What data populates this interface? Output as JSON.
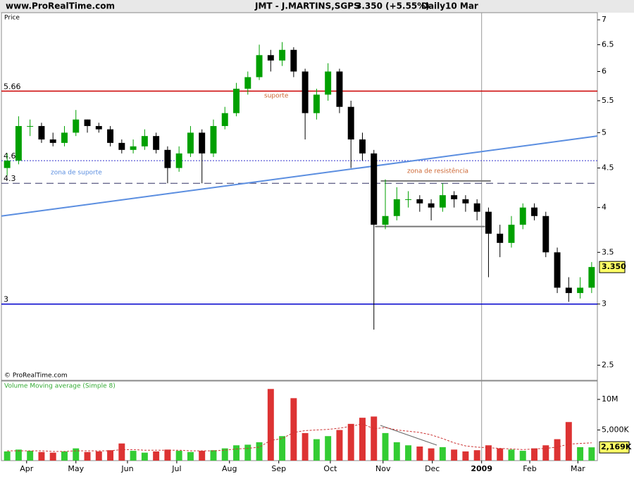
{
  "chart_data": {
    "type": "candlestick",
    "site": "www.ProRealTime.com",
    "title": "JMT - J.MARTINS,SGPS",
    "header_price": "3.350 (+5.55%)",
    "period": "Daily",
    "date": "10 Mar",
    "price_label": "Price",
    "copyright": "© ProRealTime.com",
    "volume_title": "Volume Moving average (Simple 8)",
    "log_scale": true,
    "xlim": [
      -0.5,
      51.5
    ],
    "xticks": [
      {
        "value": 1.7,
        "label": "Apr"
      },
      {
        "value": 6.0,
        "label": "May"
      },
      {
        "value": 10.5,
        "label": "Jun"
      },
      {
        "value": 14.8,
        "label": "Jul"
      },
      {
        "value": 19.4,
        "label": "Aug"
      },
      {
        "value": 23.7,
        "label": "Sep"
      },
      {
        "value": 28.2,
        "label": "Oct"
      },
      {
        "value": 32.8,
        "label": "Nov"
      },
      {
        "value": 37.1,
        "label": "Dec"
      },
      {
        "value": 41.4,
        "label": "2009"
      },
      {
        "value": 45.6,
        "label": "Feb"
      },
      {
        "value": 49.8,
        "label": "Mar"
      }
    ],
    "ylim": [
      2.39,
      7.15
    ],
    "yticks": [
      2.5,
      3,
      3.5,
      4,
      4.5,
      5,
      5.5,
      6,
      6.5,
      7
    ],
    "up_color": "#00a000",
    "down_color": "#000000",
    "open": [
      4.5,
      4.6,
      5.1,
      5.1,
      4.9,
      4.85,
      5.0,
      5.2,
      5.1,
      5.05,
      4.85,
      4.75,
      4.8,
      4.95,
      4.75,
      4.5,
      4.7,
      5.0,
      4.7,
      5.1,
      5.3,
      5.7,
      5.9,
      6.3,
      6.2,
      6.4,
      6.0,
      5.3,
      5.6,
      6.0,
      5.4,
      4.9,
      4.7,
      3.8,
      3.9,
      4.1,
      4.1,
      4.05,
      4.0,
      4.15,
      4.1,
      4.05,
      3.95,
      3.7,
      3.6,
      3.8,
      4.0,
      3.9,
      3.5,
      3.15,
      3.1,
      3.15
    ],
    "high": [
      4.7,
      5.25,
      5.2,
      5.15,
      5.0,
      5.1,
      5.35,
      5.2,
      5.15,
      5.1,
      4.9,
      4.9,
      5.05,
      5.0,
      4.8,
      4.8,
      5.1,
      5.05,
      5.2,
      5.4,
      5.8,
      6.0,
      6.5,
      6.4,
      6.55,
      6.45,
      6.05,
      5.7,
      6.15,
      6.05,
      5.5,
      5.0,
      4.75,
      4.35,
      4.25,
      4.2,
      4.15,
      4.1,
      4.3,
      4.2,
      4.15,
      4.1,
      4.0,
      3.8,
      3.9,
      4.05,
      4.05,
      3.95,
      3.55,
      3.25,
      3.25,
      3.4
    ],
    "low": [
      4.4,
      4.55,
      4.95,
      4.85,
      4.8,
      4.8,
      4.95,
      5.0,
      5.0,
      4.8,
      4.7,
      4.7,
      4.75,
      4.7,
      4.3,
      4.45,
      4.65,
      4.3,
      4.65,
      5.05,
      5.25,
      5.6,
      5.85,
      6.0,
      6.1,
      5.9,
      4.9,
      5.2,
      5.5,
      5.3,
      4.5,
      4.6,
      2.78,
      3.75,
      3.85,
      4.0,
      3.95,
      3.85,
      3.95,
      4.0,
      3.95,
      3.85,
      3.25,
      3.45,
      3.55,
      3.75,
      3.85,
      3.45,
      3.1,
      3.02,
      3.05,
      3.1
    ],
    "close": [
      4.6,
      5.1,
      5.1,
      4.9,
      4.85,
      5.0,
      5.2,
      5.1,
      5.05,
      4.85,
      4.75,
      4.8,
      4.95,
      4.75,
      4.5,
      4.7,
      5.0,
      4.7,
      5.1,
      5.3,
      5.7,
      5.9,
      6.3,
      6.2,
      6.4,
      6.0,
      5.3,
      5.6,
      6.0,
      5.4,
      4.9,
      4.7,
      3.8,
      3.9,
      4.1,
      4.1,
      4.05,
      4.0,
      4.15,
      4.1,
      4.05,
      3.95,
      3.7,
      3.6,
      3.8,
      4.0,
      3.9,
      3.5,
      3.15,
      3.1,
      3.15,
      3.35
    ],
    "last_price": {
      "value": 3.35,
      "label": "3.350"
    },
    "hlines": [
      {
        "value": 5.66,
        "label": "5.66",
        "color": "#cc0000",
        "style": "solid"
      },
      {
        "value": 4.6,
        "label": "4.6",
        "color": "#3333cc",
        "style": "dotted"
      },
      {
        "value": 4.3,
        "label": "4.3",
        "color": "#333366",
        "style": "dashed"
      },
      {
        "value": 3,
        "label": "3",
        "color": "#0000cc",
        "style": "solid"
      }
    ],
    "trendline": {
      "start": 3.9,
      "end": 4.95,
      "color": "#5b8ee0"
    },
    "zone_lines": [
      {
        "value": 4.33,
        "from": 32.6,
        "to": 42.2
      },
      {
        "value": 3.78,
        "from": 32.1,
        "to": 41.7
      }
    ],
    "annotations": {
      "support": "suporte",
      "support_zone": "zona de suporte",
      "resistance_zone": "zona de resistência"
    },
    "volume": [
      1500000,
      1800000,
      1600000,
      1400000,
      1300000,
      1500000,
      2000000,
      1400000,
      1500000,
      1700000,
      2800000,
      1600000,
      1300000,
      1500000,
      1800000,
      1600000,
      1400000,
      1600000,
      1700000,
      2000000,
      2500000,
      2600000,
      3000000,
      11700000,
      4000000,
      10200000,
      4500000,
      3500000,
      4000000,
      5000000,
      6000000,
      7000000,
      7200000,
      4500000,
      3000000,
      2500000,
      2300000,
      2000000,
      2200000,
      1800000,
      1500000,
      1700000,
      2500000,
      2000000,
      1800000,
      1600000,
      2000000,
      2500000,
      3500000,
      6300000,
      2200000,
      2169000
    ],
    "volume_ma": [
      1600000,
      1600000,
      1600000,
      1600000,
      1500000,
      1500000,
      1600000,
      1600000,
      1600000,
      1600000,
      1800000,
      1800000,
      1700000,
      1700000,
      1700000,
      1700000,
      1600000,
      1600000,
      1600000,
      1700000,
      1900000,
      2000000,
      2200000,
      3300000,
      3600000,
      4600000,
      4900000,
      5000000,
      5100000,
      5300000,
      5600000,
      6000000,
      5200000,
      5400000,
      5000000,
      4800000,
      4600000,
      4200000,
      3600000,
      2900000,
      2400000,
      2200000,
      2100000,
      2000000,
      1900000,
      1800000,
      1900000,
      2000000,
      2200000,
      2700000,
      2800000,
      2900000
    ],
    "last_volume": {
      "value": 2169000,
      "label": "2,169K"
    },
    "vlim": [
      0,
      13000000
    ],
    "vticks": [
      {
        "value": 10000000,
        "label": "10M"
      },
      {
        "value": 5000000,
        "label": "5,000K"
      }
    ],
    "volume_up_color": "#33cc33",
    "volume_down_color": "#dd3333",
    "volume_ma_color": "#cc3333"
  }
}
